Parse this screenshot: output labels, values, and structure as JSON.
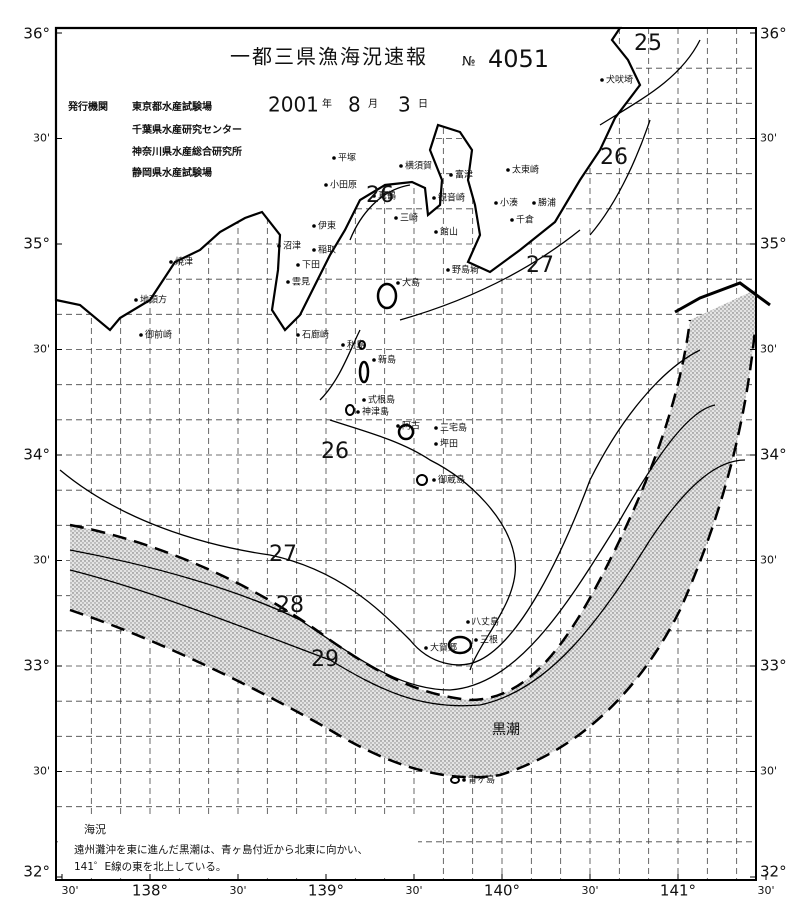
{
  "header": {
    "title": "一都三県漁海況速報",
    "number_mark": "№",
    "number": "4051",
    "issuer_heading": "発行機関",
    "issuers": [
      "東京都水産試験場",
      "千葉県水産研究センター",
      "神奈川県水産総合研究所",
      "静岡県水産試験場"
    ],
    "date": {
      "year": "2001",
      "year_unit": "年",
      "month": "8",
      "month_unit": "月",
      "day": "3",
      "day_unit": "日"
    }
  },
  "lat_labels": [
    {
      "value": 36,
      "label": "36°"
    },
    {
      "value": 35.5,
      "label": "30'"
    },
    {
      "value": 35,
      "label": "35°"
    },
    {
      "value": 34.5,
      "label": "30'"
    },
    {
      "value": 34,
      "label": "34°"
    },
    {
      "value": 33.5,
      "label": "30'"
    },
    {
      "value": 33,
      "label": "33°"
    },
    {
      "value": 32.5,
      "label": "30'"
    },
    {
      "value": 32,
      "label": "32°"
    }
  ],
  "lon_labels": [
    {
      "value": 137.5,
      "label": "30'"
    },
    {
      "value": 138,
      "label": "138°"
    },
    {
      "value": 138.5,
      "label": "30'"
    },
    {
      "value": 139,
      "label": "139°"
    },
    {
      "value": 139.5,
      "label": "30'"
    },
    {
      "value": 140,
      "label": "140°"
    },
    {
      "value": 140.5,
      "label": "30'"
    },
    {
      "value": 141,
      "label": "141°"
    },
    {
      "value": 141.5,
      "label": "30'"
    }
  ],
  "place_names": [
    "犬吠埼",
    "太東崎",
    "勝浦",
    "小湊",
    "千倉",
    "野島埼",
    "館山",
    "富津",
    "観音崎",
    "横須賀",
    "三崎",
    "平塚",
    "小田原",
    "真鶴",
    "伊東",
    "稲取",
    "下田",
    "雲見",
    "石廊崎",
    "沼津",
    "焼津",
    "地頭方",
    "御前崎",
    "大島",
    "利島",
    "新島",
    "式根島",
    "神津島",
    "三宅島",
    "阿古",
    "坪田",
    "御蔵島",
    "八丈島",
    "三根",
    "大賀郷",
    "青ヶ島"
  ],
  "isotherm_labels": [
    25,
    26,
    26,
    27,
    26,
    27,
    28,
    29
  ],
  "current_label": "黒潮",
  "notes": {
    "heading": "海況",
    "lines": [
      "遠州灘沖を東に進んだ黒潮は、青ヶ島付近から北東に向かい、",
      "141゜E線の東を北上している。"
    ]
  }
}
